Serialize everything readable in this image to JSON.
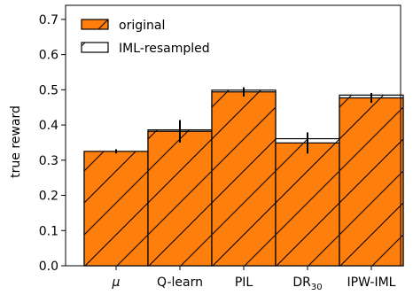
{
  "chart_data": {
    "type": "bar",
    "categories": [
      "μ",
      "Q-learn",
      "PIL",
      "DR",
      "IPW-IML"
    ],
    "category_subscripts": [
      "",
      "",
      "",
      "30",
      ""
    ],
    "ylabel": "true reward",
    "xlabel": "",
    "title": "",
    "ylim": [
      0,
      0.74
    ],
    "yticks": [
      0.0,
      0.1,
      0.2,
      0.3,
      0.4,
      0.5,
      0.6,
      0.7
    ],
    "ytick_labels": [
      "0.0",
      "0.1",
      "0.2",
      "0.3",
      "0.4",
      "0.5",
      "0.6",
      "0.7"
    ],
    "grid": false,
    "legend_position": "top-left",
    "series": [
      {
        "name": "original",
        "values": [
          0.325,
          0.382,
          0.494,
          0.349,
          0.477
        ],
        "error": [
          0.006,
          0.032,
          0.013,
          0.03,
          0.014
        ],
        "fill": "#ff7f0e",
        "hatch": "diagonal"
      },
      {
        "name": "IML-resampled",
        "values": [
          0.324,
          0.386,
          0.499,
          0.361,
          0.485
        ],
        "error": [
          0.0,
          0.0,
          0.0,
          0.0,
          0.0
        ],
        "fill": "#ffffff",
        "hatch": "diagonal"
      }
    ]
  }
}
